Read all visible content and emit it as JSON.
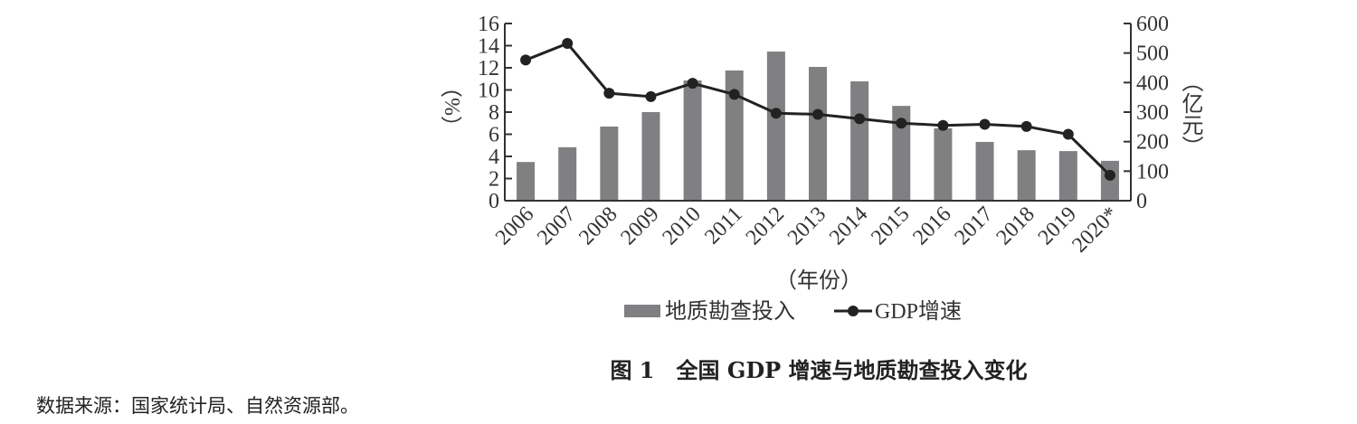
{
  "chart_data": {
    "type": "bar+line",
    "categories": [
      "2006",
      "2007",
      "2008",
      "2009",
      "2010",
      "2011",
      "2012",
      "2013",
      "2014",
      "2015",
      "2016",
      "2017",
      "2018",
      "2019",
      "2020*"
    ],
    "series": [
      {
        "name": "地质勘查投入",
        "type": "bar",
        "axis": "right",
        "color": "#808083",
        "values": [
          131,
          181,
          251,
          300,
          407,
          441,
          505,
          453,
          404,
          321,
          245,
          199,
          171,
          168,
          135
        ]
      },
      {
        "name": "GDP增速",
        "type": "line",
        "axis": "left",
        "color": "#222222",
        "values": [
          12.7,
          14.2,
          9.7,
          9.4,
          10.6,
          9.6,
          7.9,
          7.8,
          7.4,
          7.0,
          6.8,
          6.9,
          6.7,
          6.0,
          2.3
        ]
      }
    ],
    "xlabel": "（年份）",
    "ylabel_left": "（%）",
    "ylabel_right": "（亿元）",
    "ylim_left": [
      0,
      16
    ],
    "ylim_right": [
      0,
      600
    ],
    "yticks_left": [
      0,
      2,
      4,
      6,
      8,
      10,
      12,
      14,
      16
    ],
    "yticks_right": [
      0,
      100,
      200,
      300,
      400,
      500,
      600
    ],
    "legend_position": "bottom",
    "title": "图 1　全国 GDP 增速与地质勘查投入变化"
  },
  "source_note": "数据来源：国家统计局、自然资源部。"
}
